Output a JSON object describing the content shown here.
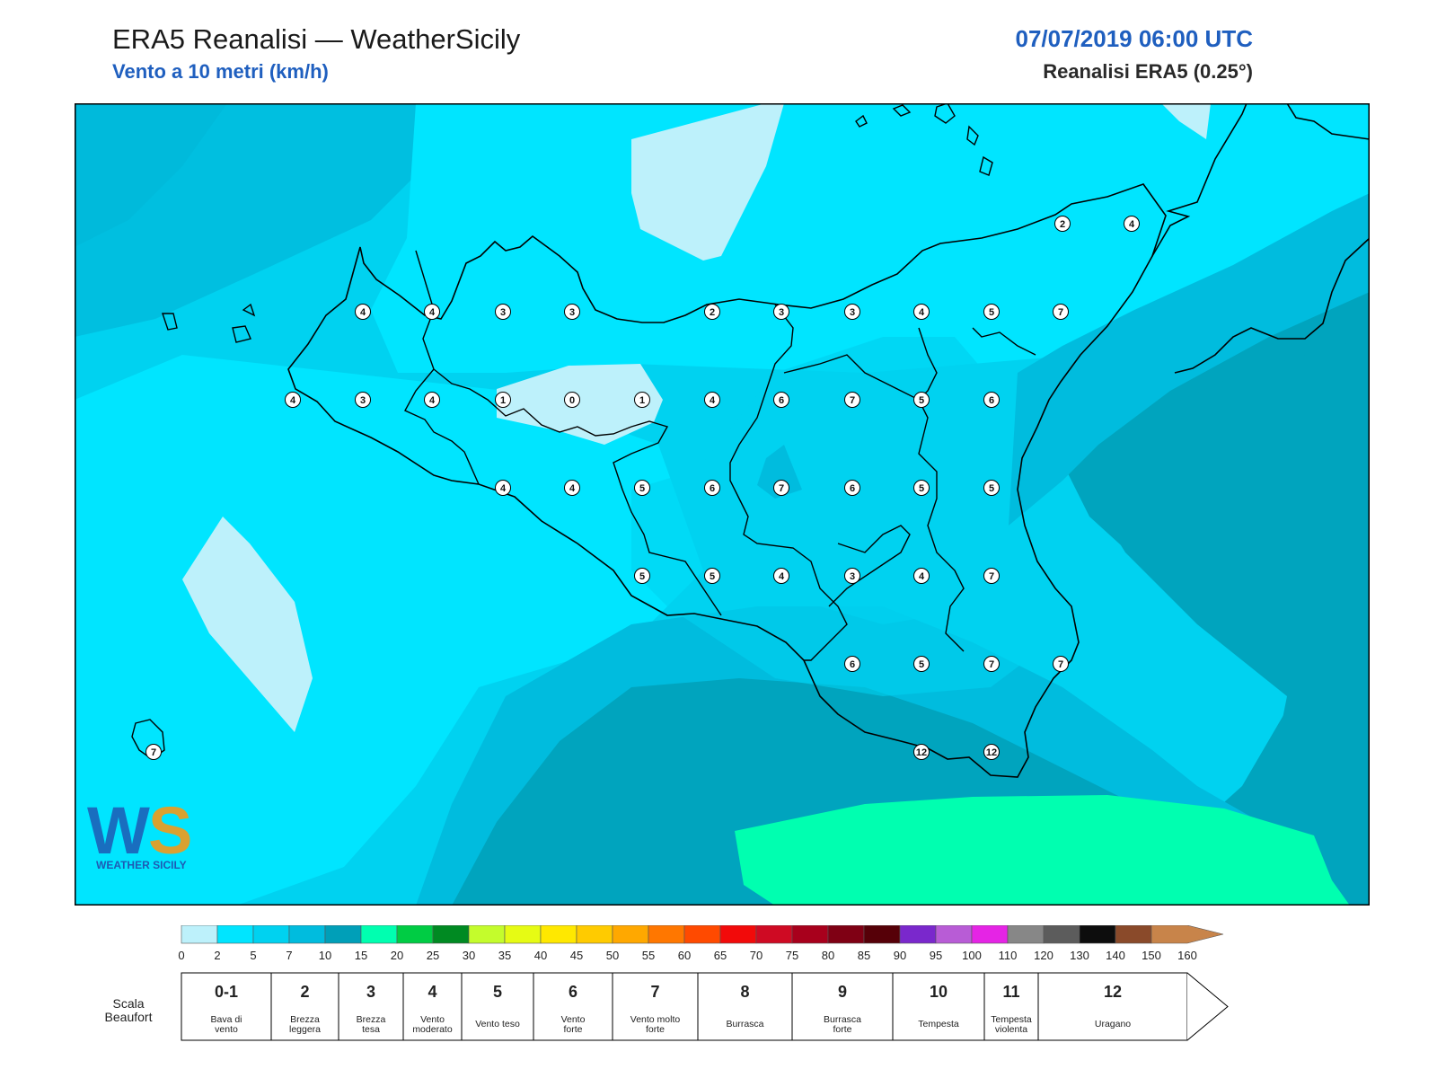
{
  "header": {
    "title": "ERA5 Reanalisi — WeatherSicily",
    "subtitle": "Vento a 10 metri (km/h)",
    "datetime": "07/07/2019 06:00 UTC",
    "source": "Reanalisi ERA5 (0.25°)"
  },
  "logo": {
    "text": "WEATHER SICILY"
  },
  "stations": [
    {
      "v": "2"
    },
    {
      "v": "4"
    },
    {
      "v": "4"
    },
    {
      "v": "4"
    },
    {
      "v": "3"
    },
    {
      "v": "3"
    },
    {
      "v": "2"
    },
    {
      "v": "3"
    },
    {
      "v": "3"
    },
    {
      "v": "4"
    },
    {
      "v": "5"
    },
    {
      "v": "7"
    },
    {
      "v": "4"
    },
    {
      "v": "3"
    },
    {
      "v": "4"
    },
    {
      "v": "1"
    },
    {
      "v": "0"
    },
    {
      "v": "1"
    },
    {
      "v": "4"
    },
    {
      "v": "6"
    },
    {
      "v": "7"
    },
    {
      "v": "5"
    },
    {
      "v": "6"
    },
    {
      "v": "4"
    },
    {
      "v": "4"
    },
    {
      "v": "5"
    },
    {
      "v": "6"
    },
    {
      "v": "7"
    },
    {
      "v": "6"
    },
    {
      "v": "5"
    },
    {
      "v": "5"
    },
    {
      "v": "5"
    },
    {
      "v": "5"
    },
    {
      "v": "4"
    },
    {
      "v": "3"
    },
    {
      "v": "4"
    },
    {
      "v": "7"
    },
    {
      "v": "6"
    },
    {
      "v": "5"
    },
    {
      "v": "7"
    },
    {
      "v": "7"
    },
    {
      "v": "7"
    },
    {
      "v": "12"
    },
    {
      "v": "12"
    }
  ],
  "colorbar": {
    "ticks": [
      "0",
      "2",
      "5",
      "7",
      "10",
      "15",
      "20",
      "25",
      "30",
      "35",
      "40",
      "45",
      "50",
      "55",
      "60",
      "65",
      "70",
      "75",
      "80",
      "85",
      "90",
      "95",
      "100",
      "110",
      "120",
      "130",
      "140",
      "150",
      "160"
    ],
    "colors": [
      "#bdf1fb",
      "#00e5ff",
      "#00d2f0",
      "#00bcde",
      "#009fb8",
      "#00ffb0",
      "#00cc44",
      "#008a22",
      "#c4fc2c",
      "#e6fb14",
      "#ffe800",
      "#ffcb00",
      "#ffa800",
      "#ff7700",
      "#ff4a00",
      "#f20a0a",
      "#cf0a23",
      "#a8001c",
      "#7f0014",
      "#560008",
      "#7a28cc",
      "#b85cd6",
      "#e524e5",
      "#878787",
      "#5c5c5c",
      "#0d0d0d",
      "#8a4a2a",
      "#c8844a"
    ]
  },
  "beaufort": {
    "label": "Scala Beaufort",
    "classes": [
      {
        "num": "0-1",
        "desc1": "Bava di",
        "desc2": "vento"
      },
      {
        "num": "2",
        "desc1": "Brezza",
        "desc2": "leggera"
      },
      {
        "num": "3",
        "desc1": "Brezza",
        "desc2": "tesa"
      },
      {
        "num": "4",
        "desc1": "Vento",
        "desc2": "moderato"
      },
      {
        "num": "5",
        "desc1": "Vento teso",
        "desc2": ""
      },
      {
        "num": "6",
        "desc1": "Vento",
        "desc2": "forte"
      },
      {
        "num": "7",
        "desc1": "Vento molto",
        "desc2": "forte"
      },
      {
        "num": "8",
        "desc1": "Burrasca",
        "desc2": ""
      },
      {
        "num": "9",
        "desc1": "Burrasca",
        "desc2": "forte"
      },
      {
        "num": "10",
        "desc1": "Tempesta",
        "desc2": ""
      },
      {
        "num": "11",
        "desc1": "Tempesta",
        "desc2": "violenta"
      },
      {
        "num": "12",
        "desc1": "Uragano",
        "desc2": ""
      }
    ]
  }
}
